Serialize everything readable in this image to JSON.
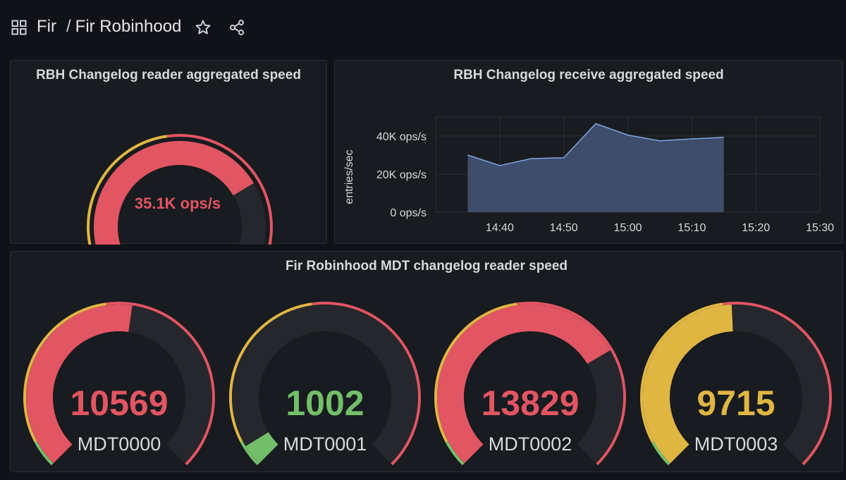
{
  "header": {
    "folder": "Fir",
    "separator": "/",
    "dashboard_title": "Fir Robinhood",
    "icons": [
      "dashboard-grid-icon",
      "star-icon",
      "share-icon"
    ]
  },
  "thresholds": {
    "green": "#73bf69",
    "yellow": "#e0b643",
    "red": "#e25562",
    "track": "#25272c"
  },
  "panels": {
    "aggregated_gauge": {
      "title": "RBH Changelog reader aggregated speed",
      "value_text": "35.1K ops/s",
      "value_color": "#e25562",
      "fraction": 0.72
    },
    "receive_chart": {
      "title": "RBH Changelog receive aggregated speed"
    },
    "mdt_row": {
      "title": "Fir Robinhood MDT changelog reader speed",
      "gauges": [
        {
          "label": "MDT0000",
          "value": "10569",
          "value_color": "#e25562",
          "fraction": 0.53
        },
        {
          "label": "MDT0001",
          "value": "1002",
          "value_color": "#73bf69",
          "fraction": 0.05
        },
        {
          "label": "MDT0002",
          "value": "13829",
          "value_color": "#e25562",
          "fraction": 0.72
        },
        {
          "label": "MDT0003",
          "value": "9715",
          "value_color": "#e0b643",
          "fraction": 0.49
        }
      ]
    }
  },
  "chart_data": {
    "type": "area",
    "title": "RBH Changelog receive aggregated speed",
    "ylabel": "entries/sec",
    "xlabel": "",
    "y_ticks": [
      "0 ops/s",
      "20K ops/s",
      "40K ops/s"
    ],
    "x_ticks": [
      "14:40",
      "14:50",
      "15:00",
      "15:10",
      "15:20",
      "15:30"
    ],
    "ylim": [
      0,
      50000
    ],
    "series": [
      {
        "color": "#7ea6e0",
        "fill": "#3d4d6b",
        "x": [
          "14:35",
          "14:40",
          "14:45",
          "14:50",
          "14:55",
          "15:00",
          "15:05",
          "15:10",
          "15:15"
        ],
        "values": [
          30000,
          24500,
          28200,
          28600,
          46500,
          40500,
          37500,
          38500,
          39300
        ]
      }
    ],
    "grid": true,
    "legend": "none"
  }
}
